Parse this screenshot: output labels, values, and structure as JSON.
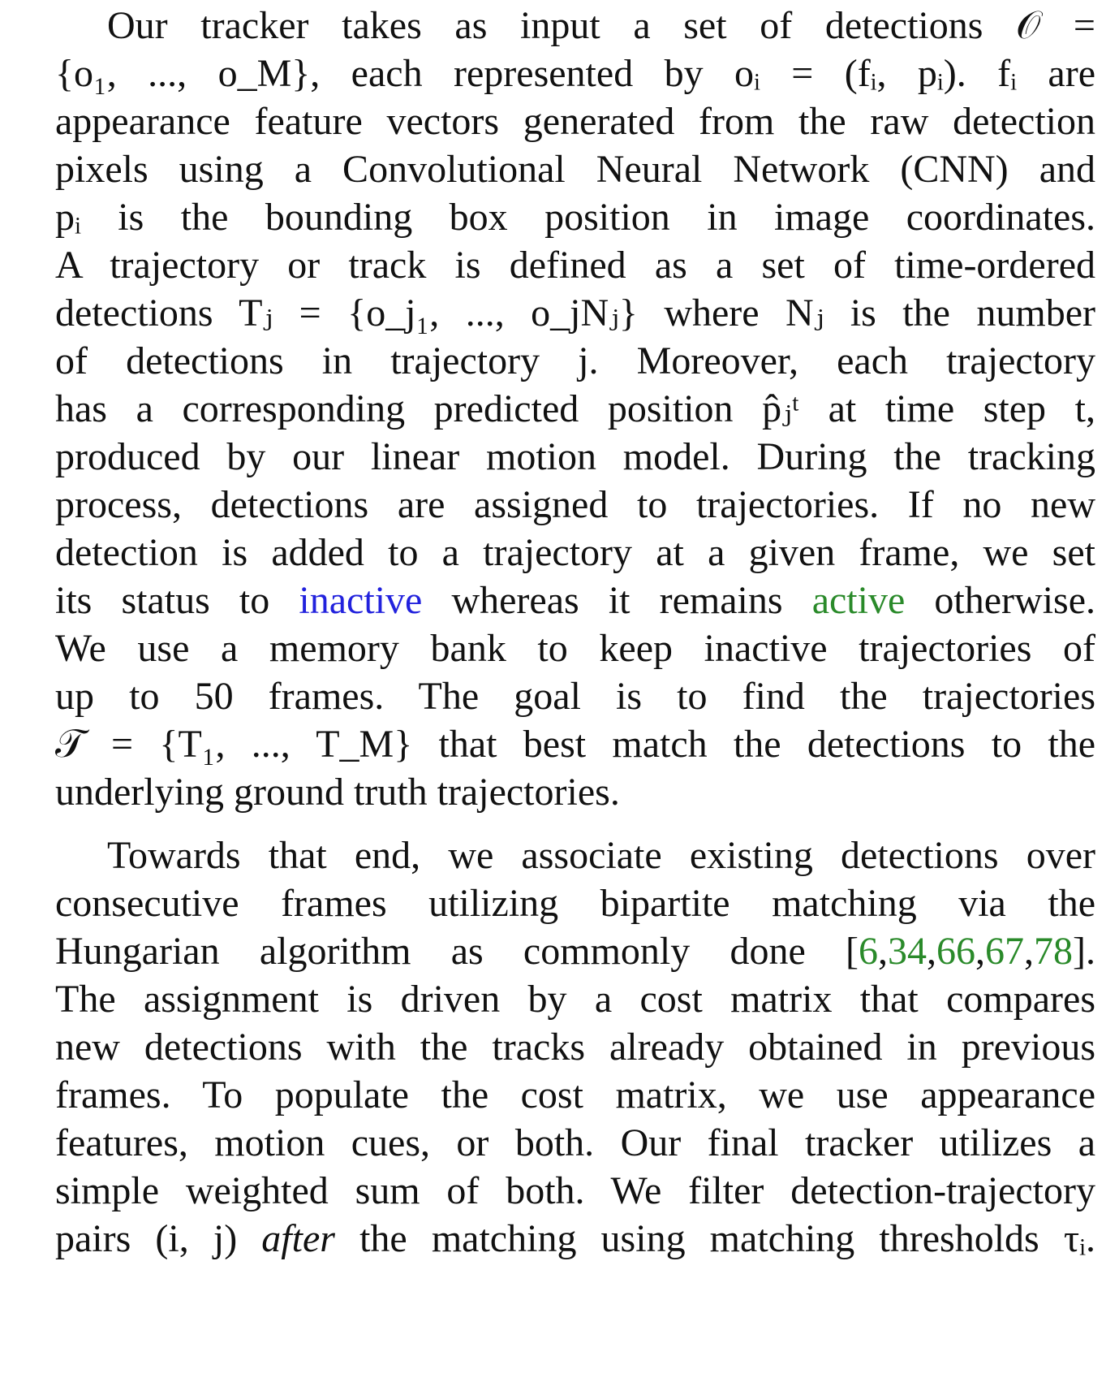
{
  "paragraph_1": {
    "lines": [
      "Our tracker takes as input a set of detections 𝒪 =",
      "{o₁, ..., o_M}, each represented by oᵢ = (fᵢ, pᵢ). fᵢ are",
      "appearance feature vectors generated from the raw detection",
      "pixels using a Convolutional Neural Network (CNN) and",
      "pᵢ is the bounding box position in image coordinates.",
      "A trajectory or track is defined as a set of time-ordered",
      "detections Tⱼ = {o_j₁, ..., o_jNⱼ} where Nⱼ is the number",
      "of detections in trajectory j. Moreover, each trajectory",
      "has a corresponding predicted position p̂ⱼᵗ at time step t,",
      "produced by our linear motion model. During the tracking",
      "process, detections are assigned to trajectories. If no new",
      "detection is added to a trajectory at a given frame, we set"
    ],
    "line_13": {
      "before": "its status to ",
      "inactive": "inactive",
      "middle": " whereas it remains ",
      "active": "active",
      "after": " otherwise."
    },
    "lines_tail": [
      "We use a memory bank to keep inactive trajectories of",
      "up to 50 frames. The goal is to find the trajectories",
      "𝒯 = {T₁, ..., T_M} that best match the detections to the",
      "underlying ground truth trajectories."
    ]
  },
  "paragraph_2": {
    "line_1": "Towards that end, we associate existing detections over",
    "line_2": "consecutive frames utilizing bipartite matching via the",
    "line_3": {
      "before": "Hungarian algorithm as commonly done [",
      "refs": [
        "6",
        "34",
        "66",
        "67",
        "78"
      ],
      "after": "]."
    },
    "lines_rest": [
      "The assignment is driven by a cost matrix that compares",
      "new detections with the tracks already obtained in previous",
      "frames. To populate the cost matrix, we use appearance",
      "features, motion cues, or both. Our final tracker utilizes a",
      "simple weighted sum of both. We filter detection-trajectory"
    ],
    "line_last": {
      "before": "pairs (i, j) ",
      "emph": "after",
      "after": " the matching using matching thresholds τᵢ."
    }
  },
  "colors": {
    "text": "#111111",
    "inactive": "#2222dd",
    "active": "#2a8a2a",
    "citation": "#2a8a2a"
  }
}
